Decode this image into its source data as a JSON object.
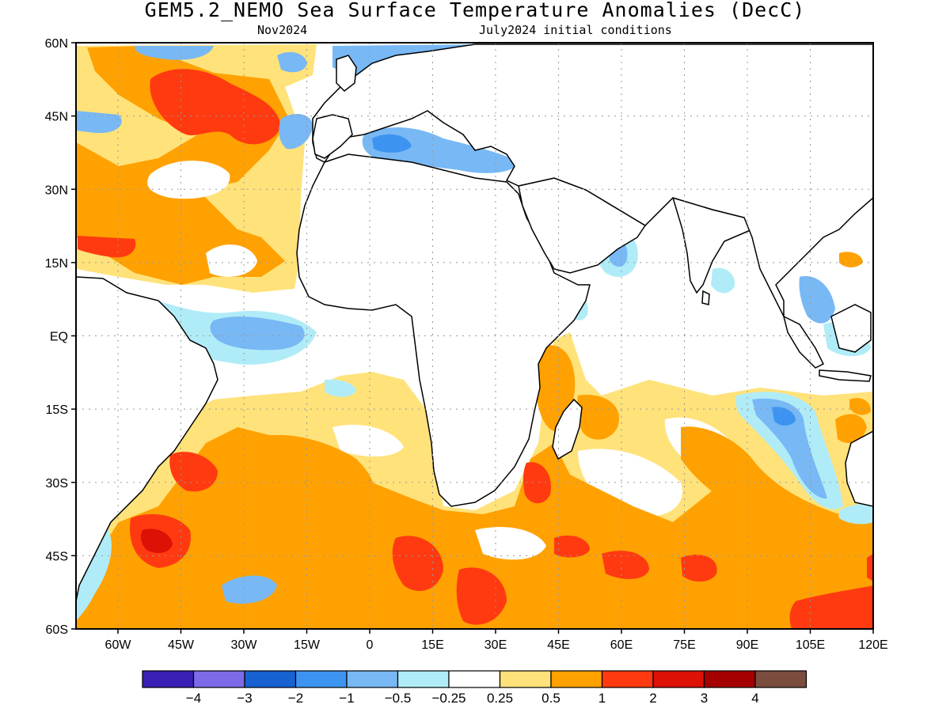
{
  "title": "GEM5.2_NEMO Sea Surface Temperature Anomalies (DecC)",
  "valid_month": "Nov2024",
  "init_text": "July2024 initial conditions",
  "map": {
    "lon_range": [
      -70,
      120
    ],
    "lat_range": [
      -60,
      60
    ],
    "lon_ticks": [
      {
        "value": -60,
        "label": "60W"
      },
      {
        "value": -45,
        "label": "45W"
      },
      {
        "value": -30,
        "label": "30W"
      },
      {
        "value": -15,
        "label": "15W"
      },
      {
        "value": 0,
        "label": "0"
      },
      {
        "value": 15,
        "label": "15E"
      },
      {
        "value": 30,
        "label": "30E"
      },
      {
        "value": 45,
        "label": "45E"
      },
      {
        "value": 60,
        "label": "60E"
      },
      {
        "value": 75,
        "label": "75E"
      },
      {
        "value": 90,
        "label": "90E"
      },
      {
        "value": 105,
        "label": "105E"
      },
      {
        "value": 120,
        "label": "120E"
      }
    ],
    "lat_ticks": [
      {
        "value": 60,
        "label": "60N"
      },
      {
        "value": 45,
        "label": "45N"
      },
      {
        "value": 30,
        "label": "30N"
      },
      {
        "value": 15,
        "label": "15N"
      },
      {
        "value": 0,
        "label": "EQ"
      },
      {
        "value": -15,
        "label": "15S"
      },
      {
        "value": -30,
        "label": "30S"
      },
      {
        "value": -45,
        "label": "45S"
      },
      {
        "value": -60,
        "label": "60S"
      }
    ],
    "grid": "dotted"
  },
  "colorbar": {
    "colors": [
      "#3b1fb5",
      "#7b6be6",
      "#1761d1",
      "#3d94f0",
      "#78b8f5",
      "#b0ecf7",
      "#ffffff",
      "#ffe27a",
      "#ffa100",
      "#ff3a10",
      "#dd1106",
      "#a50000",
      "#7b4d3e"
    ],
    "labels": [
      "−4",
      "−3",
      "−2",
      "−1",
      "−0.5",
      "−0.25",
      "0.25",
      "0.5",
      "1",
      "2",
      "3",
      "4"
    ]
  },
  "colors": {
    "light_blue": "#b0ecf7",
    "sky_blue": "#78b8f5",
    "blue": "#3d94f0",
    "yellow": "#ffe27a",
    "orange": "#ffa100",
    "red_orange": "#ff3a10",
    "red": "#dd1106"
  }
}
